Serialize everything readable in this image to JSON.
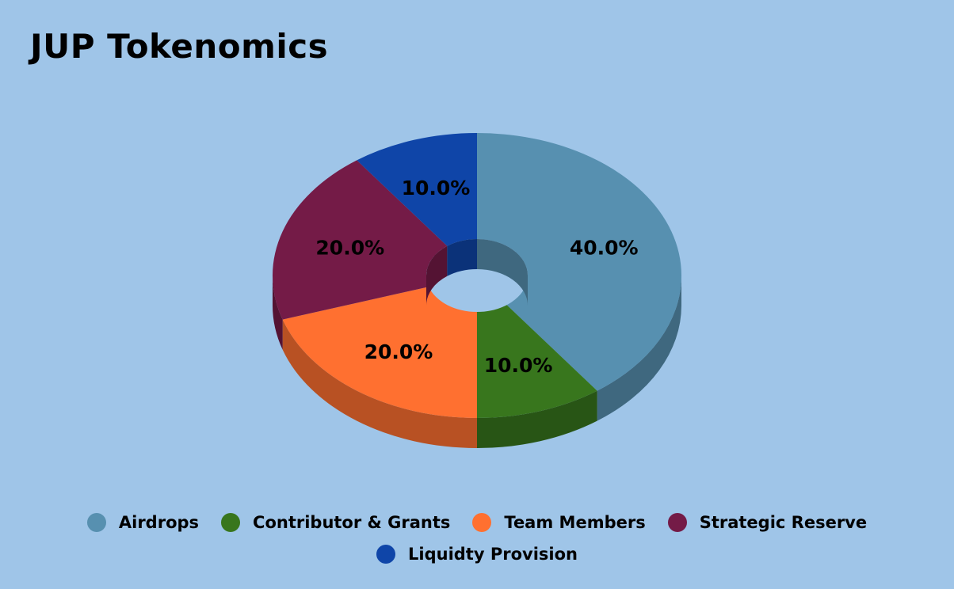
{
  "page": {
    "background": "#9fc5e8"
  },
  "title": "JUP Tokenomics",
  "chart_data": {
    "type": "pie",
    "style": "3d-donut",
    "title": "JUP Tokenomics",
    "legend_position": "bottom",
    "series": [
      {
        "name": "Airdrops",
        "value": 40,
        "label": "40.0%",
        "color": "#5790b0"
      },
      {
        "name": "Contributor & Grants",
        "value": 10,
        "label": "10.0%",
        "color": "#38761d"
      },
      {
        "name": "Team Members",
        "value": 20,
        "label": "20.0%",
        "color": "#ff7030"
      },
      {
        "name": "Strategic Reserve",
        "value": 20,
        "label": "20.0%",
        "color": "#741b47"
      },
      {
        "name": "Liquidty Provision",
        "value": 10,
        "label": "10.0%",
        "color": "#0f45a8"
      }
    ]
  }
}
